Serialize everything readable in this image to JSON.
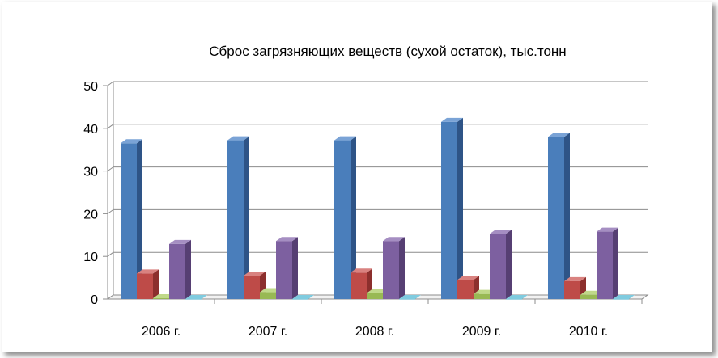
{
  "chart_data": {
    "type": "bar",
    "title": "Сброс загрязняющих веществ  (сухой остаток), тыс.тонн",
    "categories": [
      "2006 г.",
      "2007 г.",
      "2008 г.",
      "2009 г.",
      "2010 г."
    ],
    "y_ticks": [
      "0",
      "10",
      "20",
      "30",
      "40",
      "50"
    ],
    "ylim": [
      0,
      50
    ],
    "grid": true,
    "series": [
      {
        "values": [
          36.5,
          37.2,
          37.2,
          41.5,
          38.0
        ],
        "color": "#4a7ebb",
        "side": "#2e5487",
        "top": "#7aa3d6"
      },
      {
        "values": [
          6.0,
          5.5,
          6.2,
          4.5,
          4.2
        ],
        "color": "#be4b48",
        "side": "#8c2f2d",
        "top": "#d98280"
      },
      {
        "values": [
          0.2,
          1.6,
          1.4,
          1.2,
          1.0
        ],
        "color": "#98b954",
        "side": "#6f8a37",
        "top": "#c0d98a"
      },
      {
        "values": [
          12.9,
          13.6,
          13.6,
          15.3,
          15.8
        ],
        "color": "#7d60a0",
        "side": "#563f73",
        "top": "#a58ec2"
      },
      {
        "values": [
          0.0,
          0.0,
          0.0,
          0.0,
          0.0
        ],
        "color": "#46aac5",
        "side": "#2e7d93",
        "top": "#7fcbdf"
      }
    ]
  }
}
